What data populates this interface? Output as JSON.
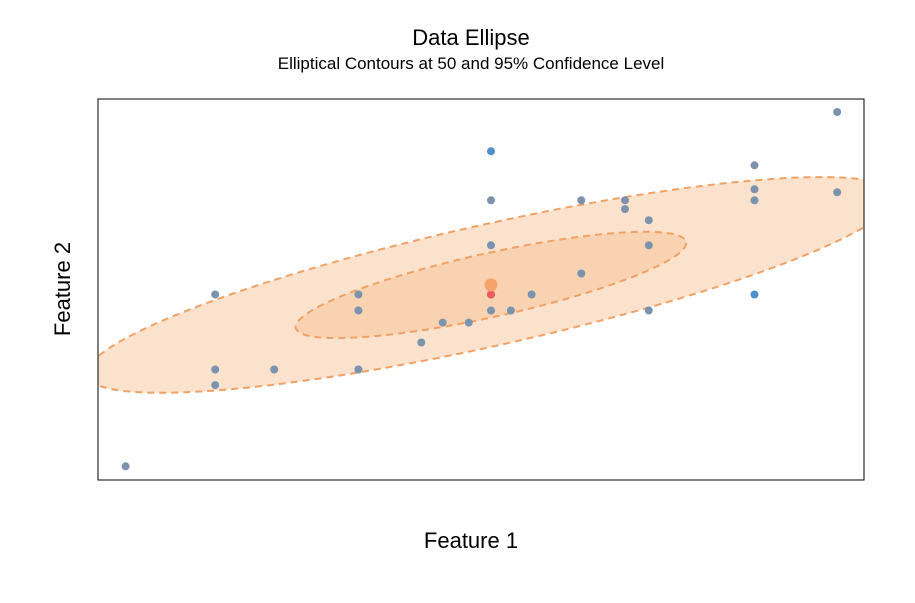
{
  "chart_data": {
    "type": "scatter",
    "title": "Data Ellipse",
    "subtitle": "Elliptical Contours at 50 and 95% Confidence Level",
    "xlabel": "Feature 1",
    "ylabel": "Feature 2",
    "xlim": [
      0,
      100
    ],
    "ylim": [
      0,
      100
    ],
    "axis_ticks": false,
    "grid": false,
    "legend": "none",
    "colors": {
      "point": "#7c93ad",
      "point_outlier": "#4f8fcc",
      "point_highlight": "#f05a5a",
      "centroid": "#f5a26b",
      "ellipse_outer_fill": "#fbe2cd",
      "ellipse_inner_fill": "#f7cfac",
      "ellipse_stroke": "#f0a266"
    },
    "points": [
      {
        "x": 3.6,
        "y": 3.6
      },
      {
        "x": 15.3,
        "y": 24.9
      },
      {
        "x": 15.3,
        "y": 29.0
      },
      {
        "x": 15.3,
        "y": 48.7
      },
      {
        "x": 23.0,
        "y": 29.0
      },
      {
        "x": 34.0,
        "y": 29.0
      },
      {
        "x": 34.0,
        "y": 44.5
      },
      {
        "x": 34.0,
        "y": 48.7
      },
      {
        "x": 42.2,
        "y": 36.1
      },
      {
        "x": 45.0,
        "y": 41.3
      },
      {
        "x": 48.4,
        "y": 41.3
      },
      {
        "x": 51.3,
        "y": 44.5
      },
      {
        "x": 51.3,
        "y": 48.7
      },
      {
        "x": 51.3,
        "y": 61.6
      },
      {
        "x": 51.3,
        "y": 73.4
      },
      {
        "x": 51.3,
        "y": 86.3,
        "group": "outlier"
      },
      {
        "x": 53.9,
        "y": 44.5
      },
      {
        "x": 56.6,
        "y": 48.7
      },
      {
        "x": 63.1,
        "y": 54.2
      },
      {
        "x": 63.1,
        "y": 73.4
      },
      {
        "x": 68.8,
        "y": 71.1
      },
      {
        "x": 68.8,
        "y": 73.4
      },
      {
        "x": 71.9,
        "y": 44.5
      },
      {
        "x": 71.9,
        "y": 61.6
      },
      {
        "x": 71.9,
        "y": 68.2
      },
      {
        "x": 85.7,
        "y": 48.7,
        "group": "outlier"
      },
      {
        "x": 85.7,
        "y": 73.4
      },
      {
        "x": 85.7,
        "y": 76.3
      },
      {
        "x": 85.7,
        "y": 82.6
      },
      {
        "x": 96.5,
        "y": 75.5
      },
      {
        "x": 96.5,
        "y": 96.6
      },
      {
        "x": 51.3,
        "y": 48.7,
        "group": "highlight"
      }
    ],
    "centroid": {
      "x": 51.3,
      "y": 51.2
    },
    "ellipses": [
      {
        "level": 0.95,
        "cx": 51.3,
        "cy": 51.2,
        "rx": 58.0,
        "ry": 14.8,
        "angle_deg": 25.5,
        "dashed": true
      },
      {
        "level": 0.5,
        "cx": 51.3,
        "cy": 51.2,
        "rx": 28.0,
        "ry": 7.8,
        "angle_deg": 25.5,
        "dashed": true
      }
    ]
  }
}
